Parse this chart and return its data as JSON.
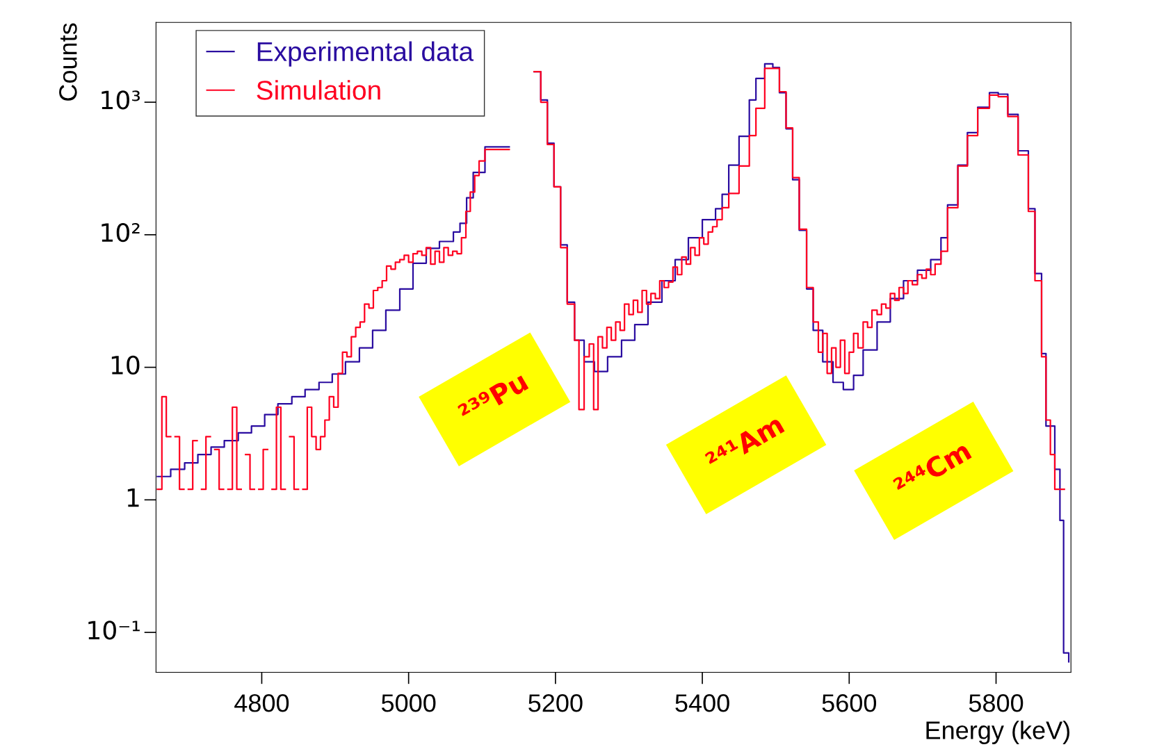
{
  "chart_data": {
    "type": "step",
    "xlabel": "Energy (keV)",
    "ylabel": "Counts",
    "log": "y",
    "legend": "top left",
    "grid": false,
    "xlim": [
      4656,
      5902
    ],
    "xticks": [
      4800,
      5000,
      5200,
      5400,
      5600,
      5800
    ],
    "ylim": [
      0.05,
      4000
    ],
    "yticks": [
      {
        "value": 0.1,
        "label": "10⁻¹"
      },
      1,
      10,
      {
        "value": 100,
        "label": "10²"
      },
      {
        "value": 1000,
        "label": "10³"
      }
    ],
    "annotations": [
      "²³⁹Pu",
      "²⁴¹Am",
      "²⁴⁴Cm"
    ],
    "series": [
      {
        "name": "Experimental data",
        "color": "#2a0ca0",
        "x": [
          4658,
          4676,
          4695,
          4713,
          4731,
          4749,
          4768,
          4786,
          4804,
          4822,
          4841,
          4859,
          4878,
          4896,
          4914,
          4933,
          4951,
          4969,
          4988,
          5006,
          5024,
          5042,
          5061,
          5070,
          5079,
          5088,
          5104,
          5137,
          5171,
          5180,
          5189,
          5198,
          5207,
          5216,
          5226,
          5239,
          5253,
          5271,
          5290,
          5308,
          5326,
          5345,
          5363,
          5381,
          5400,
          5418,
          5427,
          5436,
          5450,
          5464,
          5473,
          5485,
          5496,
          5505,
          5514,
          5523,
          5532,
          5542,
          5551,
          5564,
          5578,
          5592,
          5606,
          5619,
          5638,
          5656,
          5674,
          5693,
          5711,
          5725,
          5734,
          5748,
          5761,
          5775,
          5791,
          5803,
          5816,
          5830,
          5844,
          5853,
          5862,
          5868,
          5880,
          5887,
          5892,
          5899
        ],
        "values": [
          1.5,
          1.7,
          1.9,
          2.2,
          2.5,
          2.8,
          3.2,
          3.6,
          4.4,
          5.3,
          6.0,
          6.8,
          7.7,
          8.9,
          11,
          14,
          19,
          27,
          39,
          61,
          79,
          89,
          105,
          122,
          190,
          295,
          460,
          null,
          1700,
          1040,
          490,
          230,
          84,
          31,
          16,
          11,
          9.3,
          12,
          16,
          21,
          31,
          45,
          65,
          95,
          130,
          157,
          202,
          335,
          553,
          1040,
          1510,
          1950,
          1830,
          1180,
          630,
          260,
          108,
          39,
          19,
          11,
          7.7,
          6.8,
          8.7,
          13.5,
          22,
          33,
          45,
          54,
          65,
          95,
          168,
          335,
          590,
          915,
          1180,
          1150,
          810,
          430,
          157,
          51,
          12.7,
          3.6,
          1.7,
          0.7,
          0.07,
          0.06
        ]
      },
      {
        "name": "Simulation",
        "color": "#ff0020",
        "x": [
          4658,
          4664,
          4670,
          4676,
          4682,
          4688,
          4694,
          4700,
          4706,
          4712,
          4718,
          4724,
          4730,
          4736,
          4742,
          4748,
          4754,
          4760,
          4766,
          4772,
          4778,
          4784,
          4790,
          4796,
          4802,
          4808,
          4814,
          4820,
          4826,
          4832,
          4838,
          4844,
          4850,
          4856,
          4862,
          4868,
          4874,
          4880,
          4886,
          4892,
          4898,
          4904,
          4910,
          4916,
          4922,
          4928,
          4934,
          4940,
          4946,
          4952,
          4958,
          4964,
          4970,
          4976,
          4982,
          4988,
          4994,
          5000,
          5006,
          5012,
          5018,
          5024,
          5030,
          5036,
          5042,
          5048,
          5054,
          5060,
          5066,
          5072,
          5078,
          5084,
          5090,
          5096,
          5104,
          5137,
          5171,
          5180,
          5189,
          5198,
          5207,
          5216,
          5226,
          5232,
          5239,
          5246,
          5252,
          5258,
          5264,
          5270,
          5276,
          5282,
          5288,
          5294,
          5300,
          5306,
          5312,
          5318,
          5324,
          5330,
          5336,
          5342,
          5348,
          5354,
          5360,
          5366,
          5372,
          5378,
          5384,
          5390,
          5396,
          5402,
          5408,
          5414,
          5420,
          5427,
          5436,
          5450,
          5464,
          5473,
          5485,
          5496,
          5505,
          5514,
          5523,
          5532,
          5542,
          5551,
          5558,
          5564,
          5570,
          5576,
          5582,
          5588,
          5594,
          5600,
          5606,
          5612,
          5619,
          5625,
          5631,
          5638,
          5644,
          5650,
          5656,
          5662,
          5668,
          5674,
          5680,
          5686,
          5693,
          5699,
          5705,
          5711,
          5717,
          5725,
          5734,
          5748,
          5761,
          5775,
          5791,
          5803,
          5816,
          5830,
          5844,
          5853,
          5862,
          5868,
          5874,
          5880,
          5887,
          5893
        ],
        "values": [
          1.2,
          6,
          3,
          null,
          3,
          1.2,
          null,
          1.2,
          2.8,
          null,
          1.2,
          3,
          null,
          2.4,
          1.2,
          null,
          1.2,
          5,
          1.2,
          null,
          2.2,
          1.2,
          null,
          1.2,
          2.4,
          null,
          1.2,
          5,
          1.2,
          null,
          3,
          1.2,
          null,
          1.2,
          5,
          3,
          2.4,
          3,
          4,
          6,
          5,
          9,
          13,
          12,
          17,
          20,
          22,
          30,
          28,
          38,
          40,
          45,
          58,
          55,
          62,
          65,
          70,
          62,
          72,
          75,
          70,
          80,
          60,
          75,
          62,
          80,
          70,
          75,
          72,
          95,
          150,
          210,
          280,
          360,
          440,
          null,
          1700,
          1000,
          480,
          230,
          80,
          30,
          16,
          4.8,
          12,
          15,
          4.8,
          17,
          14,
          20,
          16,
          22,
          19,
          30,
          25,
          32,
          26,
          38,
          30,
          36,
          33,
          45,
          40,
          44,
          57,
          50,
          68,
          60,
          80,
          70,
          95,
          85,
          105,
          115,
          130,
          160,
          205,
          330,
          560,
          900,
          1800,
          1800,
          1200,
          640,
          270,
          110,
          40,
          22,
          13,
          18,
          9,
          14,
          10,
          16,
          9,
          13,
          18,
          14,
          22,
          20,
          27,
          25,
          30,
          28,
          36,
          32,
          40,
          36,
          45,
          42,
          50,
          47,
          55,
          50,
          60,
          75,
          160,
          330,
          560,
          900,
          1130,
          1100,
          780,
          400,
          150,
          45,
          12,
          4,
          2.2,
          1.2,
          1.2,
          1.2
        ]
      }
    ]
  }
}
